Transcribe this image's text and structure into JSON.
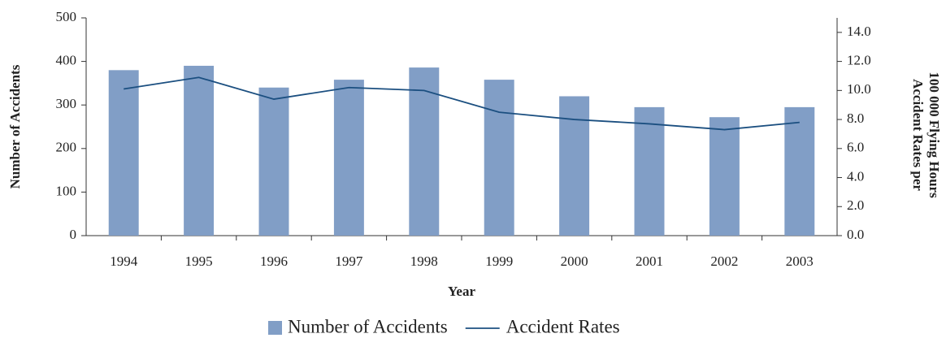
{
  "chart_data": {
    "type": "bar_line",
    "categories": [
      "1994",
      "1995",
      "1996",
      "1997",
      "1998",
      "1999",
      "2000",
      "2001",
      "2002",
      "2003"
    ],
    "series": [
      {
        "name": "Number of Accidents",
        "type": "bar",
        "color": "#819ec6",
        "values": [
          380,
          390,
          340,
          358,
          386,
          358,
          320,
          295,
          272,
          295
        ]
      },
      {
        "name": "Accident Rates",
        "type": "line",
        "axis": "y2",
        "color": "#1b4f80",
        "values": [
          10.1,
          10.9,
          9.4,
          10.2,
          10.0,
          8.5,
          8.0,
          7.7,
          7.3,
          7.8
        ]
      }
    ],
    "xlabel": "Year",
    "ylabel": "Number of Accidents",
    "y2label": [
      "Accident Rates per",
      "100 000 Flying Hours"
    ],
    "ylim": [
      0,
      500
    ],
    "yticks": [
      0,
      100,
      200,
      300,
      400,
      500
    ],
    "y2lim": [
      0,
      15
    ],
    "y2ticks": [
      {
        "value": 0,
        "label": "0.0"
      },
      {
        "value": 2,
        "label": "2.0"
      },
      {
        "value": 4,
        "label": "4.0"
      },
      {
        "value": 6,
        "label": "6.0"
      },
      {
        "value": 8,
        "label": "8.0"
      },
      {
        "value": 10,
        "label": "10.0"
      },
      {
        "value": 12,
        "label": "12.0"
      },
      {
        "value": 14,
        "label": "14.0"
      }
    ],
    "legend": "bottom"
  }
}
